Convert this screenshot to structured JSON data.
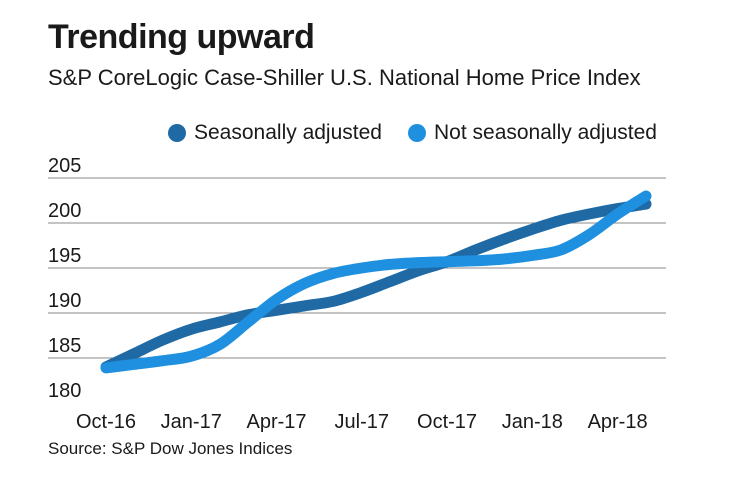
{
  "header": {
    "title": "Trending upward",
    "subtitle": "S&P CoreLogic Case-Shiller U.S. National Home Price Index"
  },
  "footer": {
    "source": "Source: S&P Dow Jones Indices"
  },
  "chart_data": {
    "type": "line",
    "title": "Trending upward",
    "subtitle": "S&P CoreLogic Case-Shiller U.S. National Home Price Index",
    "xlabel": "",
    "ylabel": "",
    "x": [
      "Oct-16",
      "Nov-16",
      "Dec-16",
      "Jan-17",
      "Feb-17",
      "Mar-17",
      "Apr-17",
      "May-17",
      "Jun-17",
      "Jul-17",
      "Aug-17",
      "Sep-17",
      "Oct-17",
      "Nov-17",
      "Dec-17",
      "Jan-18",
      "Feb-18",
      "Mar-18",
      "Apr-18",
      "May-18"
    ],
    "x_tick_labels": [
      "Oct-16",
      "Jan-17",
      "Apr-17",
      "Jul-17",
      "Oct-17",
      "Jan-18",
      "Apr-18"
    ],
    "y_ticks": [
      180,
      185,
      190,
      195,
      200,
      205
    ],
    "ylim": [
      180,
      205
    ],
    "grid": "horizontal",
    "legend_position": "top",
    "series": [
      {
        "name": "Seasonally adjusted",
        "color": "#1f6aa5",
        "values": [
          184.0,
          185.5,
          187.0,
          188.2,
          189.0,
          189.8,
          190.3,
          190.8,
          191.3,
          192.3,
          193.5,
          194.7,
          195.7,
          197.0,
          198.2,
          199.3,
          200.3,
          201.0,
          201.6,
          202.1
        ]
      },
      {
        "name": "Not seasonally adjusted",
        "color": "#1e90df",
        "values": [
          183.9,
          184.3,
          184.7,
          185.2,
          186.5,
          189.0,
          191.5,
          193.3,
          194.4,
          195.0,
          195.4,
          195.6,
          195.7,
          195.8,
          196.0,
          196.4,
          197.0,
          198.7,
          201.0,
          203.0
        ]
      }
    ]
  }
}
